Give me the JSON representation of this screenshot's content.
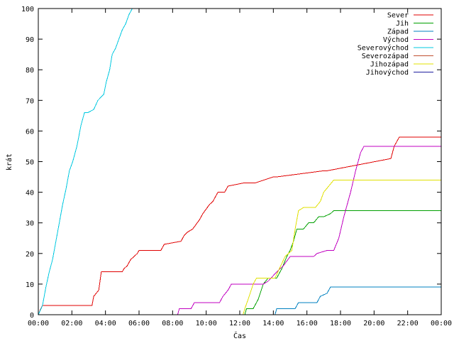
{
  "chart_data": {
    "type": "line",
    "title": "",
    "xlabel": "Čas",
    "ylabel": "krát",
    "xlim": [
      0,
      24
    ],
    "ylim": [
      0,
      100
    ],
    "grid": false,
    "legend_position": "top-right",
    "x_tick_labels": [
      "00:00",
      "02:00",
      "04:00",
      "06:00",
      "08:00",
      "10:00",
      "12:00",
      "14:00",
      "16:00",
      "18:00",
      "20:00",
      "22:00",
      "00:00"
    ],
    "y_tick_labels": [
      "0",
      "10",
      "20",
      "30",
      "40",
      "50",
      "60",
      "70",
      "80",
      "90",
      "100"
    ],
    "x_tick_values": [
      0,
      2,
      4,
      6,
      8,
      10,
      12,
      14,
      16,
      18,
      20,
      22,
      24
    ],
    "y_tick_values": [
      0,
      10,
      20,
      30,
      40,
      50,
      60,
      70,
      80,
      90,
      100
    ],
    "series": [
      {
        "name": "Sever",
        "color": "#e00000",
        "x": [
          0,
          0.15,
          0.25,
          3.2,
          3.3,
          3.6,
          3.75,
          5.0,
          5.1,
          5.3,
          5.5,
          5.9,
          6.0,
          7.3,
          7.5,
          8.5,
          8.7,
          8.9,
          9.2,
          9.6,
          9.8,
          10.2,
          10.4,
          10.7,
          11.1,
          11.3,
          12.2,
          12.6,
          12.9,
          14.0,
          14.2,
          17.0,
          17.2,
          21.0,
          21.2,
          21.4,
          21.5,
          24
        ],
        "y": [
          0,
          2,
          3,
          3,
          6,
          8,
          14,
          14,
          15,
          16,
          18,
          20,
          21,
          21,
          23,
          24,
          26,
          27,
          28,
          31,
          33,
          36,
          37,
          40,
          40,
          42,
          43,
          43,
          43,
          45,
          45,
          47,
          47,
          51,
          55,
          57,
          58,
          58
        ]
      },
      {
        "name": "Jih",
        "color": "#00a000",
        "x": [
          0,
          12.3,
          12.4,
          12.8,
          13.1,
          13.4,
          13.7,
          14.2,
          14.5,
          14.8,
          15.0,
          15.2,
          15.4,
          15.8,
          16.1,
          16.4,
          16.7,
          17.0,
          17.4,
          17.6,
          18.0,
          24
        ],
        "y": [
          0,
          0,
          2,
          2,
          5,
          10,
          12,
          12,
          15,
          19,
          21,
          24,
          28,
          28,
          30,
          30,
          32,
          32,
          33,
          34,
          34,
          34
        ]
      },
      {
        "name": "Západ",
        "color": "#0080c0",
        "x": [
          0,
          14.1,
          14.2,
          15.3,
          15.5,
          16.6,
          16.8,
          17.2,
          17.4,
          24
        ],
        "y": [
          0,
          0,
          2,
          2,
          4,
          4,
          6,
          7,
          9,
          9
        ]
      },
      {
        "name": "Východ",
        "color": "#c000c0",
        "x": [
          0,
          8.3,
          8.4,
          9.1,
          9.3,
          10.8,
          11.0,
          11.3,
          11.5,
          13.4,
          13.7,
          14.2,
          14.6,
          15.0,
          16.4,
          16.6,
          17.2,
          17.6,
          17.9,
          18.2,
          18.6,
          18.9,
          19.2,
          19.4,
          24
        ],
        "y": [
          0,
          0,
          2,
          2,
          4,
          4,
          6,
          8,
          10,
          10,
          11,
          14,
          16,
          19,
          19,
          20,
          21,
          21,
          25,
          32,
          40,
          47,
          53,
          55,
          55
        ]
      },
      {
        "name": "Severovýchod",
        "color": "#00c8e0",
        "x": [
          0,
          0.25,
          0.45,
          0.65,
          0.85,
          1.05,
          1.25,
          1.45,
          1.65,
          1.85,
          2.05,
          2.3,
          2.55,
          2.75,
          2.95,
          3.3,
          3.55,
          3.9,
          4.05,
          4.25,
          4.4,
          4.6,
          4.8,
          5.0,
          5.2,
          5.4,
          5.6,
          5.8
        ],
        "y": [
          0,
          3,
          9,
          14,
          18,
          24,
          30,
          36,
          41,
          47,
          50,
          55,
          62,
          66,
          66,
          67,
          70,
          72,
          76,
          80,
          85,
          87,
          90,
          93,
          95,
          98,
          100,
          100
        ]
      },
      {
        "name": "Severozápad",
        "color": "#c05030",
        "x": [],
        "y": []
      },
      {
        "name": "Jihozápad",
        "color": "#e0e000",
        "x": [
          0,
          12.2,
          12.3,
          12.5,
          12.8,
          13.0,
          13.3,
          13.7,
          14.1,
          14.7,
          15.1,
          15.3,
          15.5,
          15.8,
          16.2,
          16.5,
          16.8,
          17.0,
          17.3,
          17.6,
          18.0,
          24
        ],
        "y": [
          0,
          0,
          2,
          5,
          10,
          12,
          12,
          12,
          12,
          19,
          21,
          28,
          34,
          35,
          35,
          35,
          37,
          40,
          42,
          44,
          44,
          44
        ]
      },
      {
        "name": "Jihovýchod",
        "color": "#2020a0",
        "x": [],
        "y": []
      }
    ]
  }
}
